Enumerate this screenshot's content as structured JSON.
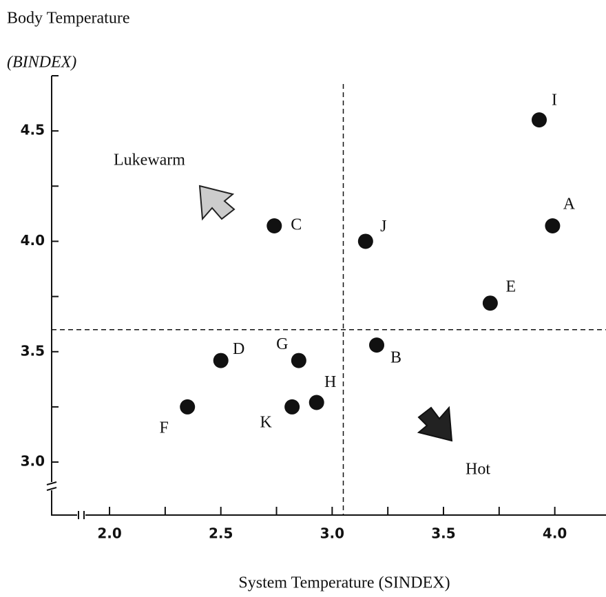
{
  "chart_data": {
    "type": "scatter",
    "y_label": [
      "Body Temperature",
      "(BINDEX)"
    ],
    "x_label": "System Temperature (SINDEX)",
    "labels": [
      "I",
      "A",
      "C",
      "J",
      "E",
      "B",
      "D",
      "G",
      "H",
      "K",
      "F"
    ],
    "x": [
      3.93,
      3.99,
      2.74,
      3.15,
      3.71,
      3.2,
      2.5,
      2.85,
      2.93,
      2.82,
      2.35
    ],
    "y": [
      4.55,
      4.07,
      4.07,
      4.0,
      3.72,
      3.53,
      3.46,
      3.46,
      3.27,
      3.25,
      3.25
    ],
    "color": "#111111",
    "xlim": [
      1.74,
      4.23
    ],
    "ylim": [
      2.76,
      4.75
    ],
    "xticks": [
      {
        "value": 2,
        "label": "2.0"
      },
      2.5,
      {
        "value": 3,
        "label": "3.0"
      },
      3.5,
      {
        "value": 4,
        "label": "4.0"
      }
    ],
    "xticks_minor": [
      2.25,
      2.75,
      3.25,
      3.75
    ],
    "yticks": [
      {
        "value": 3,
        "label": "3.0"
      },
      3.5,
      {
        "value": 4,
        "label": "4.0"
      },
      4.5
    ],
    "yticks_minor": [
      3.25,
      3.75,
      4.25,
      4.75
    ],
    "vlines": [
      3.05
    ],
    "hlines": [
      3.6
    ],
    "annotations": [
      "Lukewarm",
      "Hot"
    ]
  }
}
